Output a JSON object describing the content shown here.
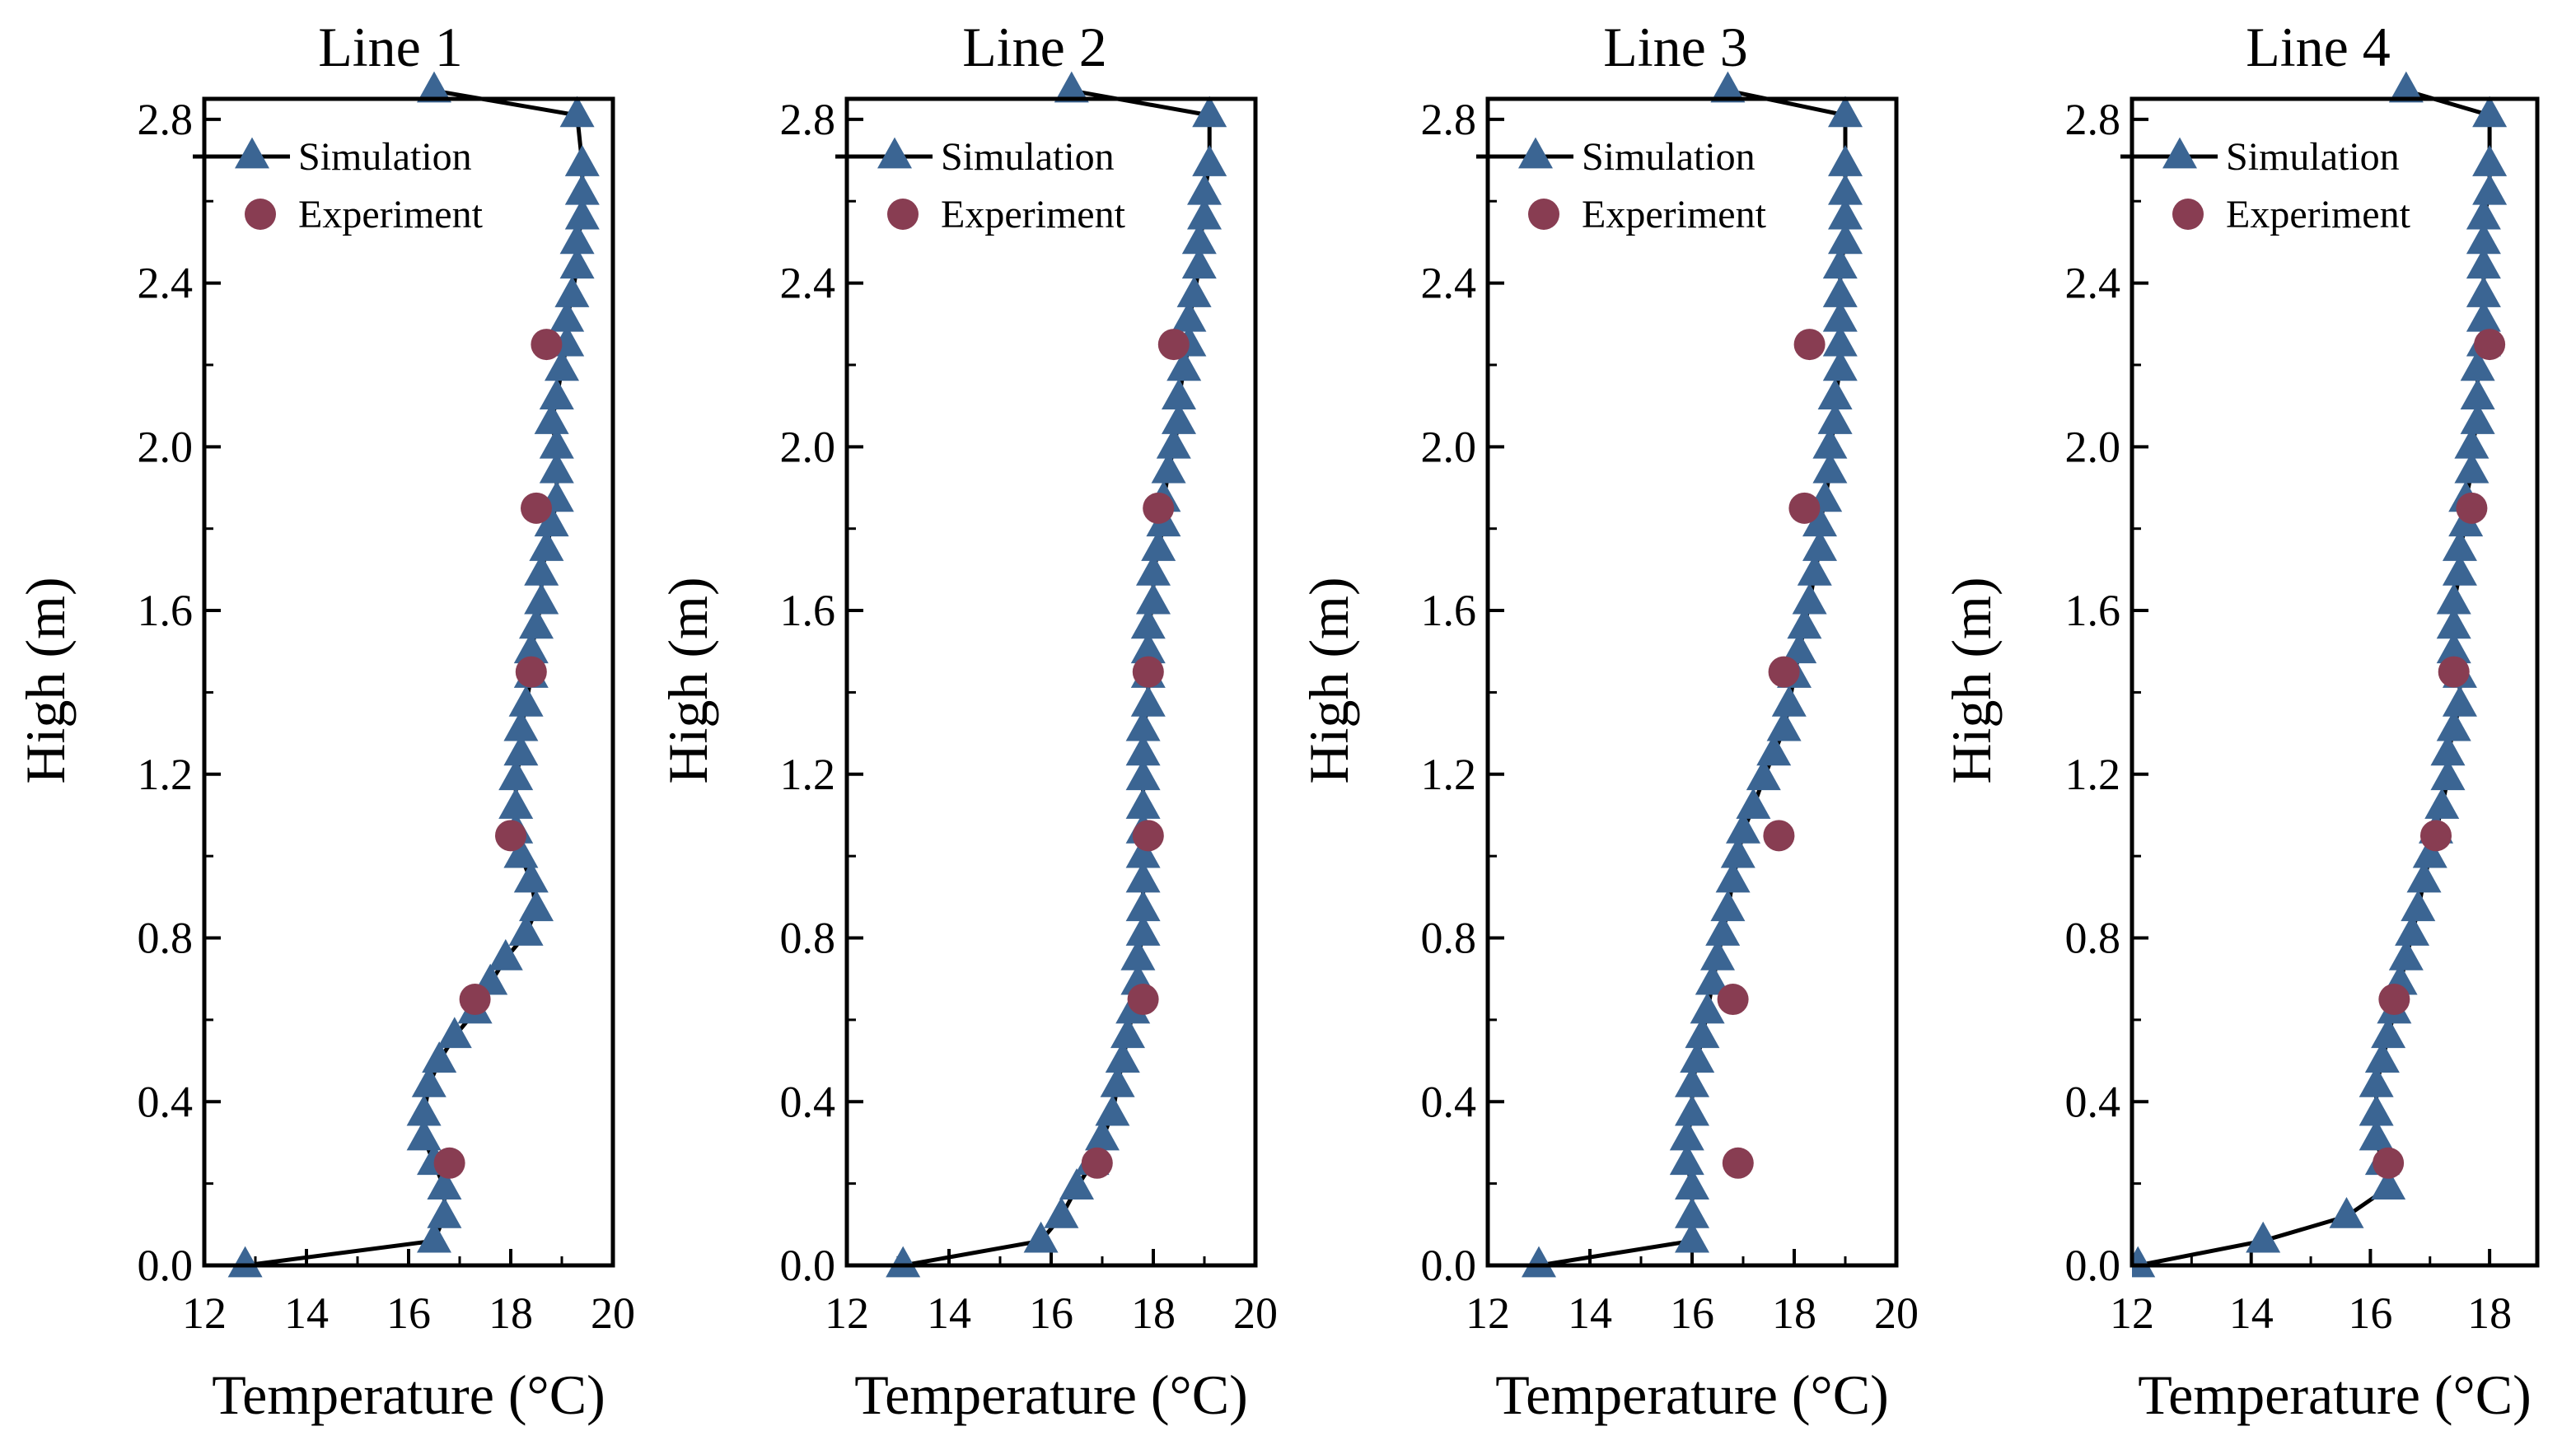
{
  "colors": {
    "simulation": "#3b6593",
    "experiment": "#883d52",
    "line": "#000000"
  },
  "chart_data": [
    {
      "type": "scatter",
      "title": "Line 1",
      "xlabel": "Temperature (°C)",
      "ylabel": "High (m)",
      "xlim": [
        12,
        20
      ],
      "ylim": [
        0,
        2.85
      ],
      "xticks": [
        "12",
        "14",
        "16",
        "18",
        "20"
      ],
      "yticks": [
        "0.0",
        "0.4",
        "0.8",
        "1.2",
        "1.6",
        "2.0",
        "2.4",
        "2.8"
      ],
      "legend": [
        "Simulation",
        "Experiment"
      ],
      "legend_position": "top-left",
      "series": [
        {
          "name": "Simulation",
          "marker": "triangle-line",
          "x": [
            12.8,
            16.5,
            16.7,
            16.7,
            16.5,
            16.3,
            16.3,
            16.4,
            16.6,
            16.9,
            17.3,
            17.6,
            17.9,
            18.3,
            18.5,
            18.4,
            18.2,
            18.1,
            18.1,
            18.1,
            18.2,
            18.2,
            18.3,
            18.4,
            18.4,
            18.5,
            18.6,
            18.6,
            18.7,
            18.8,
            18.9,
            18.9,
            18.9,
            18.8,
            18.9,
            19.0,
            19.1,
            19.1,
            19.2,
            19.3,
            19.3,
            19.4,
            19.4,
            19.4,
            19.3,
            16.5
          ],
          "y": [
            0.0,
            0.06,
            0.12,
            0.19,
            0.25,
            0.31,
            0.37,
            0.44,
            0.5,
            0.56,
            0.62,
            0.69,
            0.75,
            0.81,
            0.87,
            0.94,
            1.0,
            1.06,
            1.12,
            1.19,
            1.25,
            1.31,
            1.37,
            1.44,
            1.5,
            1.56,
            1.62,
            1.69,
            1.75,
            1.81,
            1.87,
            1.94,
            2.0,
            2.06,
            2.12,
            2.19,
            2.25,
            2.31,
            2.37,
            2.44,
            2.5,
            2.56,
            2.62,
            2.69,
            2.81,
            2.87
          ]
        },
        {
          "name": "Experiment",
          "marker": "circle",
          "x": [
            16.8,
            17.3,
            18.0,
            18.4,
            18.5,
            18.7
          ],
          "y": [
            0.25,
            0.65,
            1.05,
            1.45,
            1.85,
            2.25
          ]
        }
      ]
    },
    {
      "type": "scatter",
      "title": "Line 2",
      "xlabel": "Temperature (°C)",
      "ylabel": "High (m)",
      "xlim": [
        12,
        20
      ],
      "ylim": [
        0,
        2.85
      ],
      "xticks": [
        "12",
        "14",
        "16",
        "18",
        "20"
      ],
      "yticks": [
        "0.0",
        "0.4",
        "0.8",
        "1.2",
        "1.6",
        "2.0",
        "2.4",
        "2.8"
      ],
      "legend": [
        "Simulation",
        "Experiment"
      ],
      "legend_position": "top-left",
      "series": [
        {
          "name": "Simulation",
          "marker": "triangle-line",
          "x": [
            13.1,
            15.8,
            16.2,
            16.5,
            16.8,
            17.0,
            17.2,
            17.3,
            17.4,
            17.5,
            17.6,
            17.7,
            17.7,
            17.8,
            17.8,
            17.8,
            17.8,
            17.8,
            17.8,
            17.8,
            17.8,
            17.8,
            17.9,
            17.9,
            17.9,
            17.9,
            18.0,
            18.0,
            18.1,
            18.2,
            18.2,
            18.3,
            18.4,
            18.5,
            18.5,
            18.6,
            18.7,
            18.7,
            18.8,
            18.9,
            18.9,
            19.0,
            19.0,
            19.1,
            19.1,
            16.4
          ],
          "y": [
            0.0,
            0.06,
            0.12,
            0.19,
            0.25,
            0.31,
            0.37,
            0.44,
            0.5,
            0.56,
            0.62,
            0.69,
            0.75,
            0.81,
            0.87,
            0.94,
            1.0,
            1.06,
            1.12,
            1.19,
            1.25,
            1.31,
            1.37,
            1.44,
            1.5,
            1.56,
            1.62,
            1.69,
            1.75,
            1.81,
            1.87,
            1.94,
            2.0,
            2.06,
            2.12,
            2.19,
            2.25,
            2.31,
            2.37,
            2.44,
            2.5,
            2.56,
            2.62,
            2.69,
            2.81,
            2.87
          ]
        },
        {
          "name": "Experiment",
          "marker": "circle",
          "x": [
            16.9,
            17.8,
            17.9,
            17.9,
            18.1,
            18.4
          ],
          "y": [
            0.25,
            0.65,
            1.05,
            1.45,
            1.85,
            2.25
          ]
        }
      ]
    },
    {
      "type": "scatter",
      "title": "Line 3",
      "xlabel": "Temperature (°C)",
      "ylabel": "High (m)",
      "xlim": [
        12,
        20
      ],
      "ylim": [
        0,
        2.85
      ],
      "xticks": [
        "12",
        "14",
        "16",
        "18",
        "20"
      ],
      "yticks": [
        "0.0",
        "0.4",
        "0.8",
        "1.2",
        "1.6",
        "2.0",
        "2.4",
        "2.8"
      ],
      "legend": [
        "Simulation",
        "Experiment"
      ],
      "legend_position": "top-left",
      "series": [
        {
          "name": "Simulation",
          "marker": "triangle-line",
          "x": [
            13.0,
            16.0,
            16.0,
            16.0,
            15.9,
            15.9,
            16.0,
            16.0,
            16.1,
            16.2,
            16.3,
            16.4,
            16.5,
            16.6,
            16.7,
            16.8,
            16.9,
            17.0,
            17.2,
            17.4,
            17.6,
            17.8,
            17.9,
            18.0,
            18.1,
            18.2,
            18.3,
            18.4,
            18.5,
            18.5,
            18.6,
            18.7,
            18.7,
            18.8,
            18.8,
            18.9,
            18.9,
            18.9,
            18.9,
            18.9,
            19.0,
            19.0,
            19.0,
            19.0,
            19.0,
            16.7
          ],
          "y": [
            0.0,
            0.06,
            0.12,
            0.19,
            0.25,
            0.31,
            0.37,
            0.44,
            0.5,
            0.56,
            0.62,
            0.69,
            0.75,
            0.81,
            0.87,
            0.94,
            1.0,
            1.06,
            1.12,
            1.19,
            1.25,
            1.31,
            1.37,
            1.44,
            1.5,
            1.56,
            1.62,
            1.69,
            1.75,
            1.81,
            1.87,
            1.94,
            2.0,
            2.06,
            2.12,
            2.19,
            2.25,
            2.31,
            2.37,
            2.44,
            2.5,
            2.56,
            2.62,
            2.69,
            2.81,
            2.87
          ]
        },
        {
          "name": "Experiment",
          "marker": "circle",
          "x": [
            16.9,
            16.8,
            17.7,
            17.8,
            18.2,
            18.3
          ],
          "y": [
            0.25,
            0.65,
            1.05,
            1.45,
            1.85,
            2.25
          ]
        }
      ]
    },
    {
      "type": "scatter",
      "title": "Line 4",
      "xlabel": "Temperature (°C)",
      "ylabel": "High (m)",
      "xlim": [
        12,
        18.8
      ],
      "ylim": [
        0,
        2.85
      ],
      "xticks": [
        "12",
        "14",
        "16",
        "18"
      ],
      "yticks": [
        "0.0",
        "0.4",
        "0.8",
        "1.2",
        "1.6",
        "2.0",
        "2.4",
        "2.8"
      ],
      "legend": [
        "Simulation",
        "Experiment"
      ],
      "legend_position": "top-left",
      "series": [
        {
          "name": "Simulation",
          "marker": "triangle-line",
          "x": [
            12.1,
            14.2,
            15.6,
            16.3,
            16.2,
            16.1,
            16.1,
            16.1,
            16.2,
            16.3,
            16.4,
            16.5,
            16.6,
            16.7,
            16.8,
            16.9,
            17.0,
            17.1,
            17.2,
            17.3,
            17.3,
            17.4,
            17.5,
            17.5,
            17.4,
            17.4,
            17.4,
            17.5,
            17.5,
            17.6,
            17.6,
            17.7,
            17.7,
            17.8,
            17.8,
            17.8,
            17.9,
            17.9,
            17.9,
            17.9,
            17.9,
            17.9,
            18.0,
            18.0,
            18.0,
            16.6
          ],
          "y": [
            0.0,
            0.06,
            0.12,
            0.19,
            0.25,
            0.31,
            0.37,
            0.44,
            0.5,
            0.56,
            0.62,
            0.69,
            0.75,
            0.81,
            0.87,
            0.94,
            1.0,
            1.06,
            1.12,
            1.19,
            1.25,
            1.31,
            1.37,
            1.44,
            1.5,
            1.56,
            1.62,
            1.69,
            1.75,
            1.81,
            1.87,
            1.94,
            2.0,
            2.06,
            2.12,
            2.19,
            2.25,
            2.31,
            2.37,
            2.44,
            2.5,
            2.56,
            2.62,
            2.69,
            2.81,
            2.87
          ]
        },
        {
          "name": "Experiment",
          "marker": "circle",
          "x": [
            16.3,
            16.4,
            17.1,
            17.4,
            17.7,
            18.0
          ],
          "y": [
            0.25,
            0.65,
            1.05,
            1.45,
            1.85,
            2.25
          ]
        }
      ]
    }
  ]
}
